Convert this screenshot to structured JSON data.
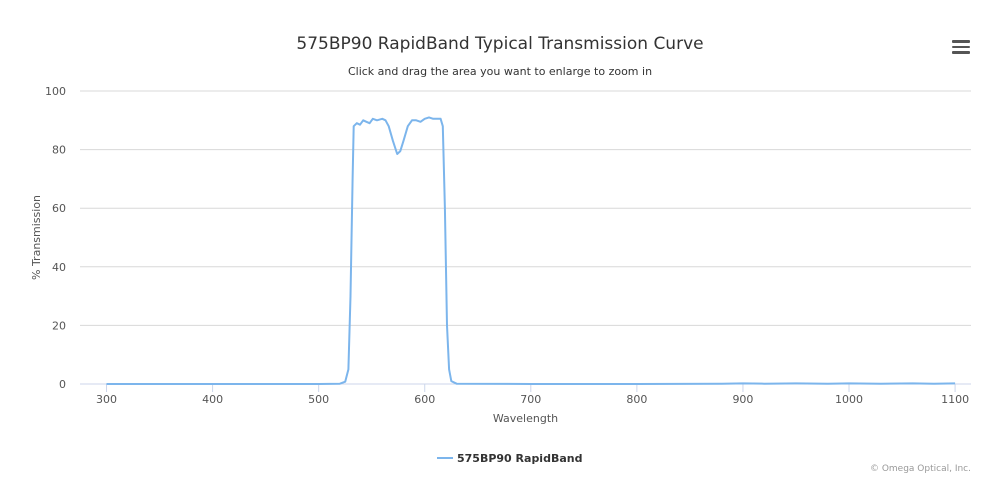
{
  "chart_data": {
    "type": "line",
    "title": "575BP90 RapidBand Typical Transmission Curve",
    "subtitle": "Click and drag the area you want to enlarge to zoom in",
    "xlabel": "Wavelength",
    "ylabel": "% Transmission",
    "xlim": [
      275,
      1115
    ],
    "ylim": [
      0,
      100
    ],
    "x_ticks": [
      300,
      400,
      500,
      600,
      700,
      800,
      900,
      1000,
      1100
    ],
    "y_ticks": [
      0,
      20,
      40,
      60,
      80,
      100
    ],
    "grid": true,
    "legend_position": "bottom-center",
    "colors": {
      "series": "#7cb5ec",
      "grid": "#d8d8d8",
      "axis": "#ccd6eb"
    },
    "series": [
      {
        "name": "575BP90 RapidBand",
        "points": [
          [
            300,
            0
          ],
          [
            400,
            0
          ],
          [
            500,
            0
          ],
          [
            520,
            0.1
          ],
          [
            525,
            0.8
          ],
          [
            528,
            5
          ],
          [
            530,
            30
          ],
          [
            532,
            70
          ],
          [
            533,
            88
          ],
          [
            536,
            89
          ],
          [
            539,
            88.5
          ],
          [
            542,
            90
          ],
          [
            545,
            89.5
          ],
          [
            548,
            89
          ],
          [
            551,
            90.5
          ],
          [
            555,
            90
          ],
          [
            560,
            90.5
          ],
          [
            563,
            90
          ],
          [
            566,
            88
          ],
          [
            570,
            83
          ],
          [
            574,
            78.5
          ],
          [
            577,
            79.5
          ],
          [
            580,
            83
          ],
          [
            584,
            88
          ],
          [
            588,
            90
          ],
          [
            592,
            90
          ],
          [
            596,
            89.5
          ],
          [
            600,
            90.5
          ],
          [
            604,
            91
          ],
          [
            608,
            90.5
          ],
          [
            612,
            90.5
          ],
          [
            615,
            90.5
          ],
          [
            617,
            88
          ],
          [
            619,
            60
          ],
          [
            621,
            20
          ],
          [
            623,
            5
          ],
          [
            625,
            1
          ],
          [
            630,
            0.1
          ],
          [
            700,
            0
          ],
          [
            800,
            0
          ],
          [
            880,
            0.1
          ],
          [
            900,
            0.2
          ],
          [
            920,
            0.1
          ],
          [
            950,
            0.2
          ],
          [
            980,
            0.1
          ],
          [
            1000,
            0.2
          ],
          [
            1030,
            0.1
          ],
          [
            1060,
            0.2
          ],
          [
            1080,
            0.1
          ],
          [
            1100,
            0.2
          ]
        ]
      }
    ]
  },
  "menu": {
    "icon": "hamburger-menu-icon"
  },
  "credits": "© Omega Optical, Inc."
}
